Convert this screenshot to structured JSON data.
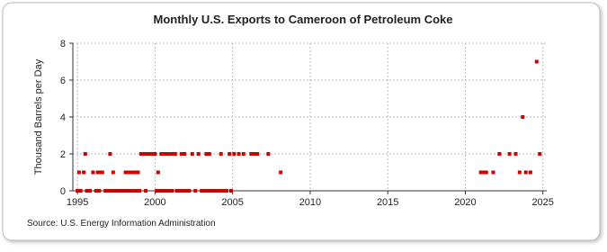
{
  "chart_data": {
    "type": "scatter",
    "title": "Monthly U.S. Exports to Cameroon of Petroleum Coke",
    "y_label": "Thousand Barrels per Day",
    "source": "Source: U.S. Energy Information Administration",
    "color": "#cc0000",
    "grid": true,
    "xlim": [
      1994.7,
      2025.25
    ],
    "ylim": [
      0,
      8
    ],
    "xticks": [
      1995,
      2000,
      2005,
      2010,
      2015,
      2020,
      2025
    ],
    "yticks": [
      0,
      2,
      4,
      6,
      8
    ],
    "x": [
      1995.1,
      1995.4,
      1995.5,
      1996.0,
      1996.3,
      1996.5,
      1996.6,
      1997.1,
      1997.3,
      1998.1,
      1998.3,
      1998.5,
      1998.7,
      1998.9,
      1999.1,
      1999.2,
      1999.3,
      1999.5,
      1999.6,
      1999.7,
      1999.8,
      1999.9,
      2000.0,
      2000.2,
      2000.4,
      2000.6,
      2000.8,
      2001.0,
      2001.2,
      2001.3,
      2001.7,
      2001.9,
      2002.4,
      2002.8,
      2003.3,
      2003.5,
      2004.25,
      2004.8,
      2005.1,
      2005.4,
      2005.7,
      2006.2,
      2006.4,
      2006.6,
      2007.3,
      2008.1,
      2021.0,
      2021.2,
      2021.35,
      2021.8,
      2022.2,
      2022.85,
      2023.25,
      2023.5,
      2023.7,
      2023.9,
      2024.2,
      2024.6,
      2024.8,
      1995.0,
      1995.2,
      1995.6,
      1995.8,
      1996.2,
      1996.4,
      1996.8,
      1997.0,
      1997.2,
      1997.4,
      1997.6,
      1997.8,
      1998.0,
      1998.2,
      1998.4,
      1998.6,
      1998.8,
      1999.0,
      1999.4,
      2000.1,
      2000.3,
      2000.5,
      2000.7,
      2000.9,
      2001.1,
      2001.4,
      2001.6,
      2001.8,
      2002.0,
      2002.2,
      2002.6,
      2003.0,
      2003.2,
      2003.4,
      2003.6,
      2003.8,
      2004.0,
      2004.2,
      2004.4,
      2004.6,
      2004.9
    ],
    "values": [
      1,
      1,
      2,
      1,
      1,
      1,
      1,
      2,
      1,
      1,
      1,
      1,
      1,
      1,
      2,
      2,
      2,
      2,
      2,
      2,
      2,
      2,
      2,
      1,
      2,
      2,
      2,
      2,
      2,
      2,
      2,
      2,
      2,
      2,
      2,
      2,
      2,
      2,
      2,
      2,
      2,
      2,
      2,
      2,
      2,
      1,
      1,
      1,
      1,
      1,
      2,
      2,
      2,
      1,
      4,
      1,
      1,
      7,
      2,
      0,
      0,
      0,
      0,
      0,
      0,
      0,
      0,
      0,
      0,
      0,
      0,
      0,
      0,
      0,
      0,
      0,
      0,
      0,
      0,
      0,
      0,
      0,
      0,
      0,
      0,
      0,
      0,
      0,
      0,
      0,
      0,
      0,
      0,
      0,
      0,
      0,
      0,
      0,
      0,
      0
    ]
  }
}
